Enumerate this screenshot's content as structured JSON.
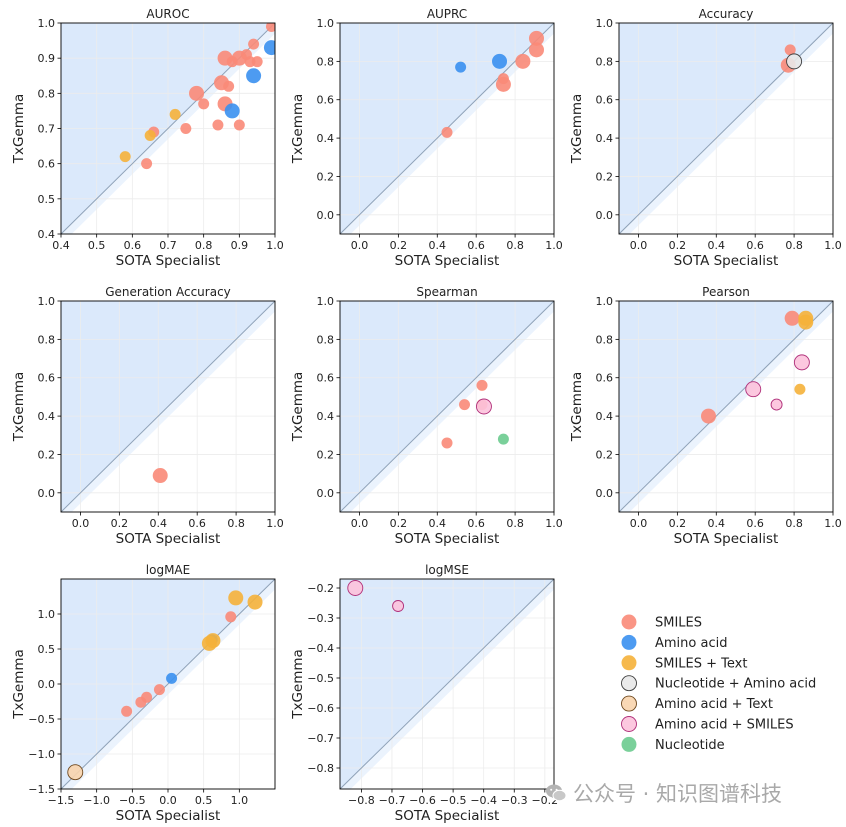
{
  "legend": {
    "position": "bottom-right",
    "items": [
      {
        "name": "SMILES",
        "color": "#f98a78"
      },
      {
        "name": "Amino acid",
        "color": "#3a90f0"
      },
      {
        "name": "SMILES + Text",
        "color": "#f5b13a"
      },
      {
        "name": "Nucleotide + Amino acid",
        "color": "#e8e8e8"
      },
      {
        "name": "Amino acid + Text",
        "color": "#f8d4ad"
      },
      {
        "name": "Amino acid + SMILES",
        "color": "#fcc2dc"
      },
      {
        "name": "Nucleotide",
        "color": "#6ccb8f"
      }
    ]
  },
  "watermark": {
    "text": "公众号 · 知识图谱科技",
    "icon": "wechat-icon"
  },
  "colors": {
    "shade": "#dbe9fb",
    "band": "#ebf3fd",
    "diagonal": "#8fa2b8",
    "frame": "#000000",
    "grid": "#ececec"
  },
  "chart_data": [
    {
      "type": "scatter",
      "title": "AUROC",
      "xlabel": "SOTA Specialist",
      "ylabel": "TxGemma",
      "xlim": [
        0.4,
        1.0
      ],
      "ylim": [
        0.4,
        1.0
      ],
      "xticks": [
        "0.4",
        "0.5",
        "0.6",
        "0.7",
        "0.8",
        "0.9",
        "1.0"
      ],
      "yticks": [
        "0.4",
        "0.5",
        "0.6",
        "0.7",
        "0.8",
        "0.9",
        "1.0"
      ],
      "grid": true,
      "series": [
        {
          "name": "SMILES",
          "points": [
            [
              0.99,
              0.99
            ],
            [
              0.94,
              0.94
            ],
            [
              0.92,
              0.91
            ],
            [
              0.95,
              0.89
            ],
            [
              0.9,
              0.9
            ],
            [
              0.88,
              0.89
            ],
            [
              0.93,
              0.89
            ],
            [
              0.86,
              0.9
            ],
            [
              0.85,
              0.83
            ],
            [
              0.87,
              0.82
            ],
            [
              0.78,
              0.8
            ],
            [
              0.8,
              0.77
            ],
            [
              0.86,
              0.77
            ],
            [
              0.84,
              0.71
            ],
            [
              0.9,
              0.71
            ],
            [
              0.75,
              0.7
            ],
            [
              0.66,
              0.69
            ],
            [
              0.64,
              0.6
            ]
          ],
          "sizes": [
            2,
            2,
            2,
            2,
            3,
            2,
            2,
            3,
            3,
            2,
            3,
            2,
            3,
            2,
            2,
            2,
            2,
            2
          ]
        },
        {
          "name": "Amino acid",
          "points": [
            [
              0.99,
              0.93
            ],
            [
              0.94,
              0.85
            ],
            [
              0.88,
              0.75
            ]
          ],
          "sizes": [
            3,
            3,
            3
          ]
        },
        {
          "name": "SMILES + Text",
          "points": [
            [
              0.72,
              0.74
            ],
            [
              0.65,
              0.68
            ],
            [
              0.58,
              0.62
            ]
          ],
          "sizes": [
            2,
            2,
            2
          ]
        }
      ]
    },
    {
      "type": "scatter",
      "title": "AUPRC",
      "xlabel": "SOTA Specialist",
      "ylabel": "TxGemma",
      "xlim": [
        -0.1,
        1.0
      ],
      "ylim": [
        -0.1,
        1.0
      ],
      "xticks": [
        "0.0",
        "0.2",
        "0.4",
        "0.6",
        "0.8",
        "1.0"
      ],
      "yticks": [
        "0.0",
        "0.2",
        "0.4",
        "0.6",
        "0.8",
        "1.0"
      ],
      "grid": true,
      "series": [
        {
          "name": "SMILES",
          "points": [
            [
              0.91,
              0.92
            ],
            [
              0.91,
              0.86
            ],
            [
              0.84,
              0.8
            ],
            [
              0.74,
              0.71
            ],
            [
              0.74,
              0.68
            ],
            [
              0.45,
              0.43
            ]
          ],
          "sizes": [
            3,
            3,
            3,
            2,
            3,
            2
          ]
        },
        {
          "name": "Amino acid",
          "points": [
            [
              0.52,
              0.77
            ],
            [
              0.72,
              0.8
            ]
          ],
          "sizes": [
            2,
            3
          ]
        }
      ]
    },
    {
      "type": "scatter",
      "title": "Accuracy",
      "xlabel": "SOTA Specialist",
      "ylabel": "TxGemma",
      "xlim": [
        -0.1,
        1.0
      ],
      "ylim": [
        -0.1,
        1.0
      ],
      "xticks": [
        "0.0",
        "0.2",
        "0.4",
        "0.6",
        "0.8",
        "1.0"
      ],
      "yticks": [
        "0.0",
        "0.2",
        "0.4",
        "0.6",
        "0.8",
        "1.0"
      ],
      "grid": true,
      "series": [
        {
          "name": "SMILES",
          "points": [
            [
              0.78,
              0.86
            ],
            [
              0.77,
              0.78
            ]
          ],
          "sizes": [
            2,
            3
          ]
        },
        {
          "name": "Nucleotide + Amino acid",
          "points": [
            [
              0.8,
              0.8
            ]
          ],
          "sizes": [
            3
          ]
        }
      ]
    },
    {
      "type": "scatter",
      "title": "Generation Accuracy",
      "xlabel": "SOTA Specialist",
      "ylabel": "TxGemma",
      "xlim": [
        -0.1,
        1.0
      ],
      "ylim": [
        -0.1,
        1.0
      ],
      "xticks": [
        "0.0",
        "0.2",
        "0.4",
        "0.6",
        "0.8",
        "1.0"
      ],
      "yticks": [
        "0.0",
        "0.2",
        "0.4",
        "0.6",
        "0.8",
        "1.0"
      ],
      "grid": true,
      "series": [
        {
          "name": "SMILES",
          "points": [
            [
              0.41,
              0.09
            ]
          ],
          "sizes": [
            3
          ]
        }
      ]
    },
    {
      "type": "scatter",
      "title": "Spearman",
      "xlabel": "SOTA Specialist",
      "ylabel": "TxGemma",
      "xlim": [
        -0.1,
        1.0
      ],
      "ylim": [
        -0.1,
        1.0
      ],
      "xticks": [
        "0.0",
        "0.2",
        "0.4",
        "0.6",
        "0.8",
        "1.0"
      ],
      "yticks": [
        "0.0",
        "0.2",
        "0.4",
        "0.6",
        "0.8",
        "1.0"
      ],
      "grid": true,
      "series": [
        {
          "name": "SMILES",
          "points": [
            [
              0.63,
              0.56
            ],
            [
              0.54,
              0.46
            ],
            [
              0.63,
              0.46
            ],
            [
              0.45,
              0.26
            ]
          ],
          "sizes": [
            2,
            2,
            2,
            2
          ]
        },
        {
          "name": "Amino acid + SMILES",
          "points": [
            [
              0.64,
              0.45
            ]
          ],
          "sizes": [
            3
          ]
        },
        {
          "name": "Nucleotide",
          "points": [
            [
              0.74,
              0.28
            ]
          ],
          "sizes": [
            2
          ]
        }
      ]
    },
    {
      "type": "scatter",
      "title": "Pearson",
      "xlabel": "SOTA Specialist",
      "ylabel": "TxGemma",
      "xlim": [
        -0.1,
        1.0
      ],
      "ylim": [
        -0.1,
        1.0
      ],
      "xticks": [
        "0.0",
        "0.2",
        "0.4",
        "0.6",
        "0.8",
        "1.0"
      ],
      "yticks": [
        "0.0",
        "0.2",
        "0.4",
        "0.6",
        "0.8",
        "1.0"
      ],
      "grid": true,
      "series": [
        {
          "name": "SMILES",
          "points": [
            [
              0.79,
              0.91
            ],
            [
              0.36,
              0.4
            ]
          ],
          "sizes": [
            3,
            3
          ]
        },
        {
          "name": "SMILES + Text",
          "points": [
            [
              0.86,
              0.91
            ],
            [
              0.86,
              0.89
            ],
            [
              0.83,
              0.54
            ]
          ],
          "sizes": [
            3,
            3,
            2
          ]
        },
        {
          "name": "Amino acid + SMILES",
          "points": [
            [
              0.84,
              0.68
            ],
            [
              0.59,
              0.54
            ],
            [
              0.71,
              0.46
            ]
          ],
          "sizes": [
            3,
            3,
            2
          ]
        }
      ]
    },
    {
      "type": "scatter",
      "title": "logMAE",
      "xlabel": "SOTA Specialist",
      "ylabel": "TxGemma",
      "xlim": [
        -1.5,
        1.5
      ],
      "ylim": [
        -1.5,
        1.5
      ],
      "xticks": [
        "−1.5",
        "−1.0",
        "−0.5",
        "0.0",
        "0.5",
        "1.0"
      ],
      "yticks": [
        "−1.5",
        "−1.0",
        "−0.5",
        "0.0",
        "0.5",
        "1.0"
      ],
      "grid": true,
      "series": [
        {
          "name": "SMILES",
          "points": [
            [
              0.88,
              0.96
            ],
            [
              -0.12,
              -0.08
            ],
            [
              -0.3,
              -0.19
            ],
            [
              -0.38,
              -0.26
            ],
            [
              -0.58,
              -0.39
            ]
          ],
          "sizes": [
            2,
            2,
            2,
            2,
            2
          ]
        },
        {
          "name": "Amino acid",
          "points": [
            [
              0.62,
              0.63
            ],
            [
              0.05,
              0.08
            ]
          ],
          "sizes": [
            2,
            2
          ]
        },
        {
          "name": "SMILES + Text",
          "points": [
            [
              0.95,
              1.23
            ],
            [
              1.22,
              1.17
            ],
            [
              0.58,
              0.58
            ],
            [
              0.63,
              0.62
            ]
          ],
          "sizes": [
            3,
            3,
            3,
            3
          ]
        },
        {
          "name": "Amino acid + Text",
          "points": [
            [
              -1.3,
              -1.26
            ]
          ],
          "sizes": [
            3
          ]
        }
      ]
    },
    {
      "type": "scatter",
      "title": "logMSE",
      "xlabel": "SOTA Specialist",
      "ylabel": "TxGemma",
      "xlim": [
        -0.87,
        -0.17
      ],
      "ylim": [
        -0.87,
        -0.17
      ],
      "xticks": [
        "−0.8",
        "−0.7",
        "−0.6",
        "−0.5",
        "−0.4",
        "−0.3",
        "−0.2"
      ],
      "yticks": [
        "−0.8",
        "−0.7",
        "−0.6",
        "−0.5",
        "−0.4",
        "−0.3",
        "−0.2"
      ],
      "grid": true,
      "series": [
        {
          "name": "Amino acid + SMILES",
          "points": [
            [
              -0.82,
              -0.2
            ],
            [
              -0.68,
              -0.26
            ]
          ],
          "sizes": [
            3,
            2
          ]
        }
      ]
    }
  ]
}
